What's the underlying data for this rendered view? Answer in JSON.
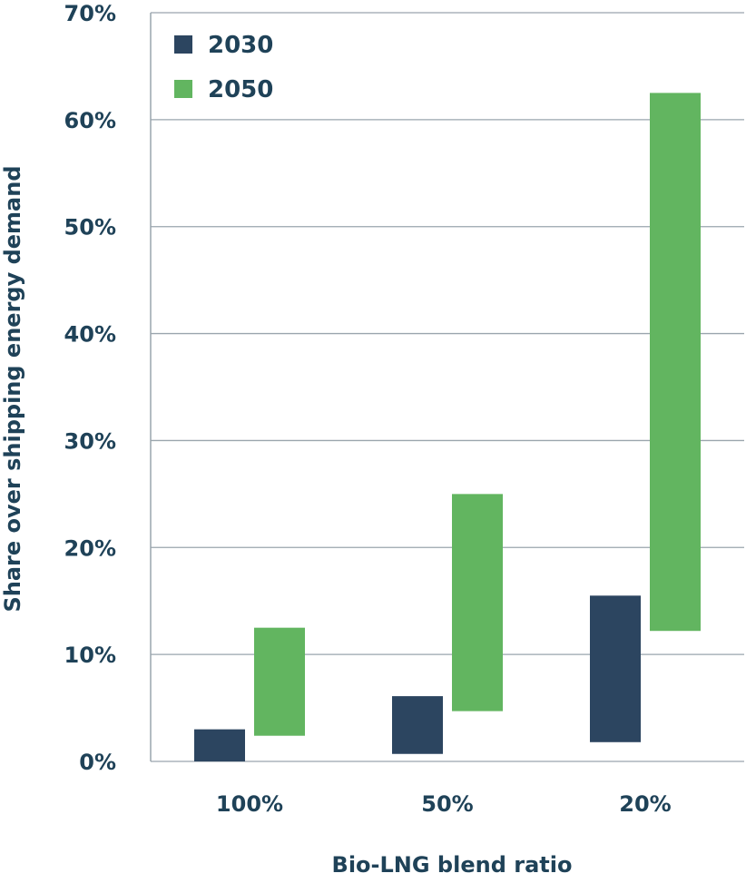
{
  "chart_data": {
    "type": "bar",
    "bar_style": "floating-range",
    "categories": [
      "100%",
      "50%",
      "20%"
    ],
    "series": [
      {
        "name": "2030",
        "color": "#2c4560",
        "ranges": [
          [
            0,
            3
          ],
          [
            0.7,
            6.1
          ],
          [
            1.8,
            15.5
          ]
        ]
      },
      {
        "name": "2050",
        "color": "#62b560",
        "ranges": [
          [
            2.4,
            12.5
          ],
          [
            4.7,
            25
          ],
          [
            12.2,
            62.5
          ]
        ]
      }
    ],
    "xlabel": "Bio-LNG blend ratio",
    "ylabel": "Share over shipping energy demand",
    "ylim": [
      0,
      70
    ],
    "yticks": [
      "0%",
      "10%",
      "20%",
      "30%",
      "40%",
      "50%",
      "60%",
      "70%"
    ],
    "grid": true,
    "legend_position": "top-left"
  }
}
